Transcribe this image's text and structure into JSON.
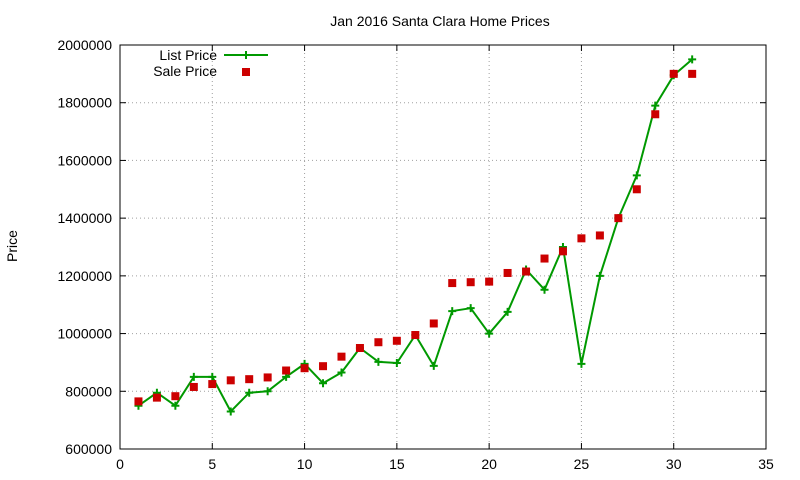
{
  "chart_data": {
    "type": "line",
    "title": "Jan 2016 Santa Clara Home Prices",
    "xlabel": "",
    "ylabel": "Price",
    "xlim": [
      0,
      35
    ],
    "ylim": [
      600000,
      2000000
    ],
    "x_ticks": [
      0,
      5,
      10,
      15,
      20,
      25,
      30,
      35
    ],
    "y_ticks": [
      600000,
      800000,
      1000000,
      1200000,
      1400000,
      1600000,
      1800000,
      2000000
    ],
    "grid": true,
    "legend_position": "top-left",
    "series": [
      {
        "name": "List Price",
        "style": "line+cross",
        "color": "#009900",
        "x": [
          1,
          2,
          3,
          4,
          5,
          6,
          7,
          8,
          9,
          10,
          11,
          12,
          13,
          14,
          15,
          16,
          17,
          18,
          19,
          20,
          21,
          22,
          23,
          24,
          25,
          26,
          27,
          28,
          29,
          30,
          31
        ],
        "y": [
          750000,
          795000,
          750000,
          850000,
          850000,
          730000,
          795000,
          800000,
          850000,
          895000,
          828000,
          865000,
          950000,
          902000,
          898000,
          995000,
          888000,
          1078000,
          1088000,
          1000000,
          1075000,
          1222000,
          1152000,
          1300000,
          895000,
          1200000,
          1400000,
          1548000,
          1790000,
          1895000,
          1950000
        ]
      },
      {
        "name": "Sale Price",
        "style": "square",
        "color": "#cc0000",
        "x": [
          1,
          2,
          3,
          4,
          5,
          6,
          7,
          8,
          9,
          10,
          11,
          12,
          13,
          14,
          15,
          16,
          17,
          18,
          19,
          20,
          21,
          22,
          23,
          24,
          25,
          26,
          27,
          28,
          29,
          30,
          31
        ],
        "y": [
          765000,
          778000,
          783000,
          815000,
          825000,
          838000,
          842000,
          848000,
          872000,
          880000,
          887000,
          920000,
          950000,
          970000,
          975000,
          995000,
          1035000,
          1175000,
          1178000,
          1180000,
          1210000,
          1215000,
          1260000,
          1285000,
          1330000,
          1340000,
          1400000,
          1500000,
          1760000,
          1900000,
          1900000
        ]
      }
    ]
  }
}
